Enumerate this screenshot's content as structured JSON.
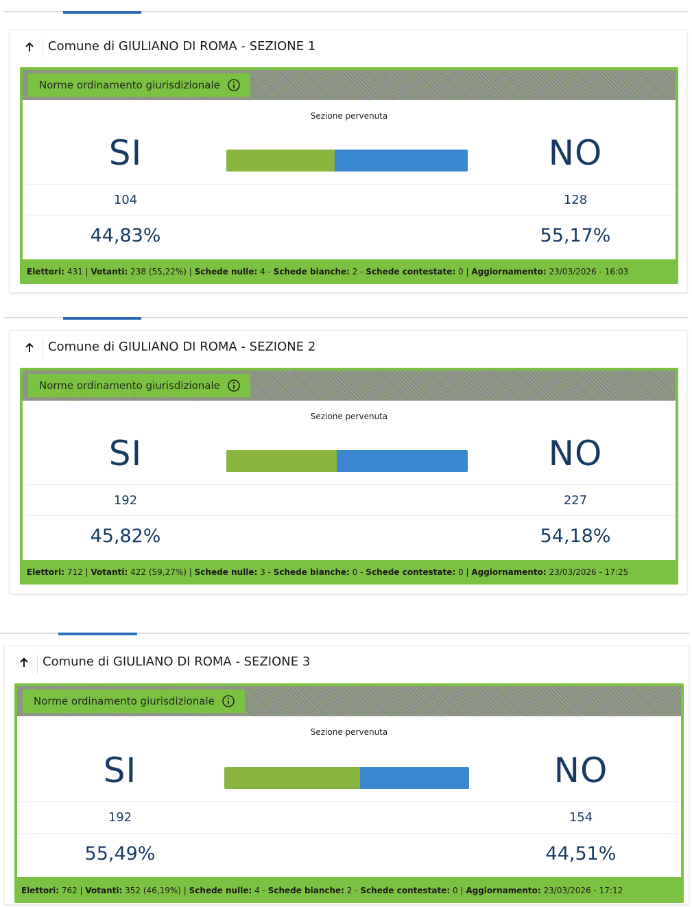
{
  "colors": {
    "yes": "#8ab53e",
    "no": "#3a86cf",
    "frame": "#7cc242",
    "text_dark": "#173a63",
    "tab_active": "#2b6ab8"
  },
  "icons": {
    "header": "arrow-up-icon",
    "pill": "info-circle-icon"
  },
  "sections": [
    {
      "title": "Comune di GIULIANO DI ROMA - SEZIONE 1",
      "referendum": "Norme ordinamento giurisdizionale",
      "status": "Sezione pervenuta",
      "yes_label": "SI",
      "no_label": "NO",
      "yes_votes": "104",
      "no_votes": "128",
      "yes_percent": "44,83%",
      "no_percent": "55,17%",
      "yes_share": 44.83,
      "footer": {
        "elettori_label": "Elettori:",
        "elettori": "431",
        "votanti_label": "Votanti:",
        "votanti": "238 (55,22%)",
        "nulle_label": "Schede nulle:",
        "nulle": "4",
        "bianche_label": "Schede bianche:",
        "bianche": "2",
        "contestate_label": "Schede contestate:",
        "contestate": "0",
        "aggiornamento_label": "Aggiornamento:",
        "aggiornamento": "23/03/2026 - 16:03"
      }
    },
    {
      "title": "Comune di GIULIANO DI ROMA - SEZIONE 2",
      "referendum": "Norme ordinamento giurisdizionale",
      "status": "Sezione pervenuta",
      "yes_label": "SI",
      "no_label": "NO",
      "yes_votes": "192",
      "no_votes": "227",
      "yes_percent": "45,82%",
      "no_percent": "54,18%",
      "yes_share": 45.82,
      "footer": {
        "elettori_label": "Elettori:",
        "elettori": "712",
        "votanti_label": "Votanti:",
        "votanti": "422 (59,27%)",
        "nulle_label": "Schede nulle:",
        "nulle": "3",
        "bianche_label": "Schede bianche:",
        "bianche": "0",
        "contestate_label": "Schede contestate:",
        "contestate": "0",
        "aggiornamento_label": "Aggiornamento:",
        "aggiornamento": "23/03/2026 - 17:25"
      }
    },
    {
      "title": "Comune di GIULIANO DI ROMA - SEZIONE 3",
      "referendum": "Norme ordinamento giurisdizionale",
      "status": "Sezione pervenuta",
      "yes_label": "SI",
      "no_label": "NO",
      "yes_votes": "192",
      "no_votes": "154",
      "yes_percent": "55,49%",
      "no_percent": "44,51%",
      "yes_share": 55.49,
      "footer": {
        "elettori_label": "Elettori:",
        "elettori": "762",
        "votanti_label": "Votanti:",
        "votanti": "352 (46,19%)",
        "nulle_label": "Schede nulle:",
        "nulle": "4",
        "bianche_label": "Schede bianche:",
        "bianche": "2",
        "contestate_label": "Schede contestate:",
        "contestate": "0",
        "aggiornamento_label": "Aggiornamento:",
        "aggiornamento": "23/03/2026 - 17:12"
      }
    }
  ]
}
